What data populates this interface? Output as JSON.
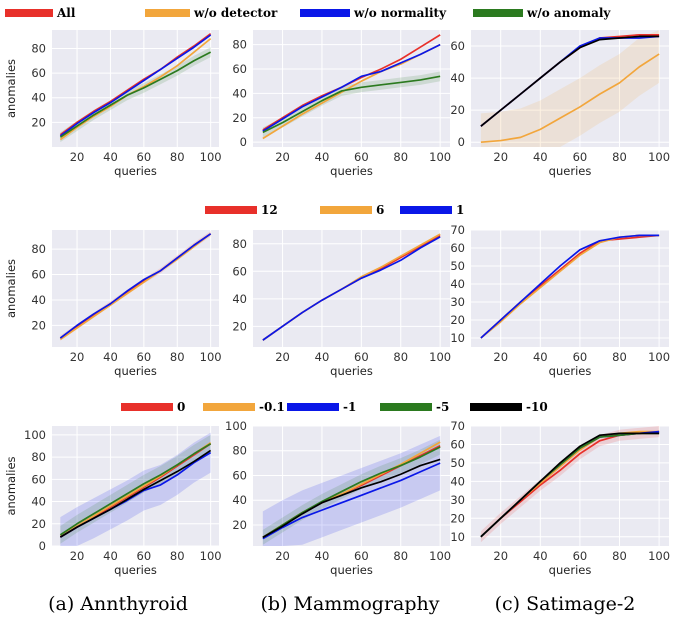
{
  "colors": {
    "red": "#e8302a",
    "orange": "#f2a63c",
    "blue": "#0a17e8",
    "green": "#2b7a1f",
    "black": "#000000",
    "panel_bg": "#eaeaf2",
    "grid": "#ffffff"
  },
  "captions": [
    "(a) Annthyroid",
    "(b) Mammography",
    "(c) Satimage-2"
  ],
  "chart_data": [
    {
      "type": "line",
      "row": 0,
      "col": 0,
      "legend": [
        "All",
        "w/o detector",
        "w/o normality",
        "w/o anomaly"
      ],
      "xlabel": "queries",
      "ylabel": "anomalies",
      "xlim": [
        5,
        105
      ],
      "ylim": [
        0,
        95
      ],
      "xticks": [
        20,
        40,
        60,
        80,
        100
      ],
      "yticks": [
        20,
        40,
        60,
        80
      ],
      "x": [
        10,
        20,
        30,
        40,
        50,
        60,
        70,
        80,
        90,
        100
      ],
      "series": [
        {
          "name": "All",
          "color": "red",
          "values": [
            10,
            20,
            29,
            37,
            46,
            55,
            63,
            73,
            82,
            92
          ]
        },
        {
          "name": "w/o detector",
          "color": "orange",
          "values": [
            6,
            16,
            25,
            33,
            42,
            49,
            57,
            66,
            77,
            88
          ]
        },
        {
          "name": "w/o normality",
          "color": "blue",
          "values": [
            9,
            19,
            28,
            36,
            45,
            54,
            63,
            72,
            81,
            91
          ]
        },
        {
          "name": "w/o anomaly",
          "color": "green",
          "values": [
            8,
            17,
            26,
            34,
            42,
            48,
            55,
            62,
            70,
            77
          ],
          "band": 4
        }
      ]
    },
    {
      "type": "line",
      "row": 0,
      "col": 1,
      "xlabel": "queries",
      "ylabel": "",
      "xlim": [
        5,
        105
      ],
      "ylim": [
        -4,
        92
      ],
      "xticks": [
        20,
        40,
        60,
        80,
        100
      ],
      "yticks": [
        0,
        20,
        40,
        60,
        80
      ],
      "x": [
        10,
        20,
        30,
        40,
        50,
        60,
        70,
        80,
        90,
        100
      ],
      "series": [
        {
          "name": "All",
          "color": "red",
          "values": [
            10,
            20,
            30,
            38,
            45,
            53,
            60,
            68,
            78,
            88
          ]
        },
        {
          "name": "w/o detector",
          "color": "orange",
          "values": [
            3,
            13,
            23,
            32,
            41,
            50,
            58,
            64,
            72,
            80
          ]
        },
        {
          "name": "w/o normality",
          "color": "blue",
          "values": [
            9,
            19,
            29,
            37,
            45,
            54,
            58,
            65,
            72,
            80
          ]
        },
        {
          "name": "w/o anomaly",
          "color": "green",
          "values": [
            8,
            16,
            25,
            34,
            42,
            45,
            47,
            49,
            51,
            54
          ],
          "band": 4
        }
      ]
    },
    {
      "type": "line",
      "row": 0,
      "col": 2,
      "xlabel": "queries",
      "ylabel": "",
      "xlim": [
        5,
        105
      ],
      "ylim": [
        -3,
        70
      ],
      "xticks": [
        20,
        40,
        60,
        80,
        100
      ],
      "yticks": [
        0,
        20,
        40,
        60
      ],
      "x": [
        10,
        20,
        30,
        40,
        50,
        60,
        70,
        80,
        90,
        100
      ],
      "series": [
        {
          "name": "All",
          "color": "red",
          "values": [
            10,
            20,
            30,
            40,
            50,
            59,
            65,
            66,
            67,
            67
          ]
        },
        {
          "name": "w/o detector",
          "color": "orange",
          "values": [
            0,
            1,
            3,
            8,
            15,
            22,
            30,
            37,
            47,
            55
          ],
          "band": 18
        },
        {
          "name": "w/o normality",
          "color": "blue",
          "values": [
            10,
            20,
            30,
            40,
            50,
            60,
            65,
            65,
            65,
            66
          ]
        },
        {
          "name": "w/o anomaly",
          "color": "black",
          "values": [
            10,
            20,
            30,
            40,
            50,
            59,
            64,
            65,
            66,
            66
          ]
        }
      ]
    },
    {
      "type": "line",
      "row": 1,
      "col": 0,
      "legend": [
        "12",
        "6",
        "1"
      ],
      "xlabel": "queries",
      "ylabel": "anomalies",
      "xlim": [
        5,
        105
      ],
      "ylim": [
        3,
        95
      ],
      "xticks": [
        20,
        40,
        60,
        80,
        100
      ],
      "yticks": [
        20,
        40,
        60,
        80
      ],
      "x": [
        10,
        20,
        30,
        40,
        50,
        60,
        70,
        80,
        90,
        100
      ],
      "series": [
        {
          "name": "12",
          "color": "red",
          "values": [
            10,
            19,
            28,
            37,
            46,
            55,
            63,
            73,
            83,
            92
          ],
          "band": 2
        },
        {
          "name": "6",
          "color": "orange",
          "values": [
            9,
            18,
            27,
            36,
            45,
            54,
            63,
            72,
            82,
            92
          ]
        },
        {
          "name": "1",
          "color": "blue",
          "values": [
            10,
            20,
            29,
            37,
            47,
            56,
            63,
            73,
            83,
            92
          ]
        }
      ]
    },
    {
      "type": "line",
      "row": 1,
      "col": 1,
      "xlabel": "queries",
      "ylabel": "",
      "xlim": [
        5,
        105
      ],
      "ylim": [
        5,
        90
      ],
      "xticks": [
        20,
        40,
        60,
        80,
        100
      ],
      "yticks": [
        20,
        40,
        60,
        80
      ],
      "x": [
        10,
        20,
        30,
        40,
        50,
        60,
        70,
        80,
        90,
        100
      ],
      "series": [
        {
          "name": "12",
          "color": "red",
          "values": [
            10,
            20,
            30,
            39,
            47,
            55,
            62,
            70,
            78,
            86
          ]
        },
        {
          "name": "6",
          "color": "orange",
          "values": [
            10,
            20,
            30,
            39,
            47,
            56,
            63,
            71,
            79,
            87
          ]
        },
        {
          "name": "1",
          "color": "blue",
          "values": [
            10,
            20,
            30,
            39,
            47,
            55,
            61,
            68,
            77,
            85
          ]
        }
      ]
    },
    {
      "type": "line",
      "row": 1,
      "col": 2,
      "xlabel": "queries",
      "ylabel": "",
      "xlim": [
        5,
        105
      ],
      "ylim": [
        5,
        70
      ],
      "xticks": [
        20,
        40,
        60,
        80,
        100
      ],
      "yticks": [
        10,
        20,
        30,
        40,
        50,
        60,
        70
      ],
      "x": [
        10,
        20,
        30,
        40,
        50,
        60,
        70,
        80,
        90,
        100
      ],
      "series": [
        {
          "name": "12",
          "color": "red",
          "values": [
            10,
            20,
            30,
            39,
            48,
            57,
            64,
            65,
            66,
            67
          ]
        },
        {
          "name": "6",
          "color": "orange",
          "values": [
            10,
            19,
            29,
            38,
            47,
            56,
            63,
            66,
            67,
            67
          ]
        },
        {
          "name": "1",
          "color": "blue",
          "values": [
            10,
            20,
            30,
            40,
            50,
            59,
            64,
            66,
            67,
            67
          ]
        }
      ]
    },
    {
      "type": "line",
      "row": 2,
      "col": 0,
      "legend": [
        "0",
        "-0.1",
        "-1",
        "-5",
        "-10"
      ],
      "xlabel": "queries",
      "ylabel": "anomalies",
      "xlim": [
        5,
        105
      ],
      "ylim": [
        0,
        108
      ],
      "xticks": [
        20,
        40,
        60,
        80,
        100
      ],
      "yticks": [
        0,
        20,
        40,
        60,
        80,
        100
      ],
      "x": [
        10,
        20,
        30,
        40,
        50,
        60,
        70,
        80,
        90,
        100
      ],
      "series": [
        {
          "name": "0",
          "color": "red",
          "values": [
            8,
            17,
            26,
            35,
            44,
            53,
            62,
            72,
            82,
            92
          ]
        },
        {
          "name": "-0.1",
          "color": "orange",
          "values": [
            9,
            18,
            27,
            36,
            45,
            54,
            63,
            73,
            83,
            93
          ]
        },
        {
          "name": "-1",
          "color": "blue",
          "values": [
            8,
            17,
            25,
            33,
            41,
            50,
            55,
            64,
            75,
            84
          ],
          "band": 18
        },
        {
          "name": "-5",
          "color": "green",
          "values": [
            10,
            20,
            29,
            38,
            47,
            56,
            64,
            73,
            83,
            92
          ],
          "band": 8
        },
        {
          "name": "-10",
          "color": "black",
          "values": [
            8,
            17,
            25,
            33,
            42,
            51,
            59,
            67,
            76,
            86
          ]
        }
      ]
    },
    {
      "type": "line",
      "row": 2,
      "col": 1,
      "xlabel": "queries",
      "ylabel": "",
      "xlim": [
        5,
        105
      ],
      "ylim": [
        3,
        100
      ],
      "xticks": [
        20,
        40,
        60,
        80,
        100
      ],
      "yticks": [
        20,
        40,
        60,
        80,
        100
      ],
      "x": [
        10,
        20,
        30,
        40,
        50,
        60,
        70,
        80,
        90,
        100
      ],
      "series": [
        {
          "name": "0",
          "color": "red",
          "values": [
            10,
            20,
            30,
            38,
            45,
            52,
            60,
            68,
            76,
            84
          ]
        },
        {
          "name": "-0.1",
          "color": "orange",
          "values": [
            10,
            20,
            30,
            38,
            45,
            53,
            61,
            69,
            78,
            87
          ]
        },
        {
          "name": "-1",
          "color": "blue",
          "values": [
            9,
            18,
            26,
            32,
            38,
            44,
            50,
            56,
            63,
            70
          ],
          "band": 22
        },
        {
          "name": "-5",
          "color": "green",
          "values": [
            10,
            20,
            30,
            39,
            47,
            55,
            62,
            68,
            75,
            83
          ],
          "band": 6
        },
        {
          "name": "-10",
          "color": "black",
          "values": [
            10,
            19,
            29,
            38,
            44,
            50,
            55,
            61,
            68,
            73
          ]
        }
      ]
    },
    {
      "type": "line",
      "row": 2,
      "col": 2,
      "xlabel": "queries",
      "ylabel": "",
      "xlim": [
        5,
        105
      ],
      "ylim": [
        5,
        70
      ],
      "xticks": [
        20,
        40,
        60,
        80,
        100
      ],
      "yticks": [
        10,
        20,
        30,
        40,
        50,
        60,
        70
      ],
      "x": [
        10,
        20,
        30,
        40,
        50,
        60,
        70,
        80,
        90,
        100
      ],
      "series": [
        {
          "name": "0",
          "color": "red",
          "values": [
            10,
            20,
            29,
            38,
            46,
            55,
            62,
            65,
            66,
            67
          ],
          "band": 3
        },
        {
          "name": "-0.1",
          "color": "orange",
          "values": [
            10,
            20,
            30,
            39,
            48,
            57,
            64,
            66,
            67,
            67
          ]
        },
        {
          "name": "-1",
          "color": "blue",
          "values": [
            10,
            20,
            30,
            40,
            49,
            58,
            64,
            65,
            66,
            67
          ]
        },
        {
          "name": "-5",
          "color": "green",
          "values": [
            10,
            20,
            30,
            40,
            49,
            58,
            64,
            65,
            66,
            66
          ]
        },
        {
          "name": "-10",
          "color": "black",
          "values": [
            10,
            20,
            30,
            40,
            50,
            59,
            65,
            66,
            66,
            66
          ]
        }
      ]
    }
  ]
}
